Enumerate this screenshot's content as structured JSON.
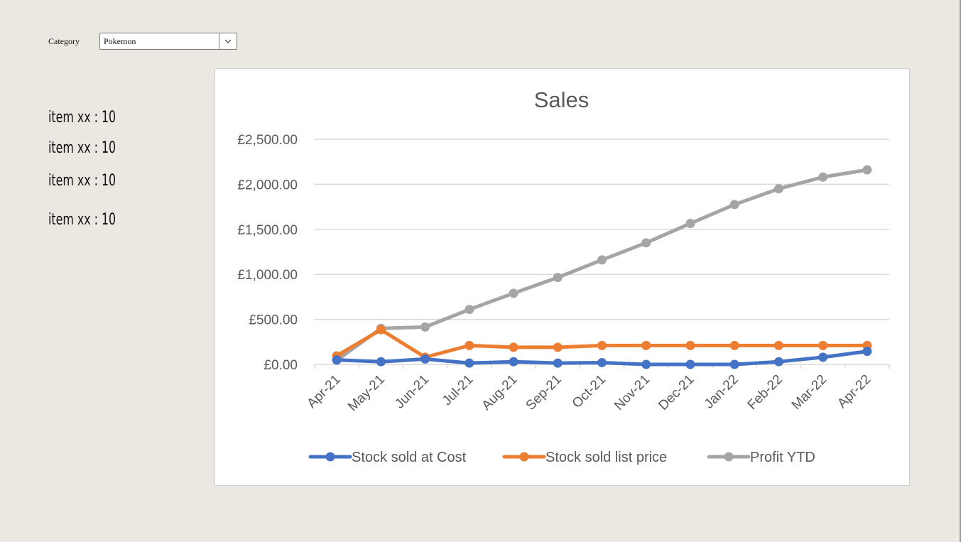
{
  "filter": {
    "label": "Category",
    "selected": "Pokemon"
  },
  "items": [
    {
      "text": "item xx : 10"
    },
    {
      "text": "item xx : 10"
    },
    {
      "text": "item xx : 10"
    },
    {
      "text": "item xx : 10"
    }
  ],
  "colors": {
    "stock_cost": "#4472c4",
    "stock_list": "#ed7d31",
    "profit": "#a5a5a5",
    "gridline": "#d9d9d9",
    "text": "#595959"
  },
  "chart_data": {
    "type": "line",
    "title": "Sales",
    "xlabel": "",
    "ylabel": "",
    "categories": [
      "Apr-21",
      "May-21",
      "Jun-21",
      "Jul-21",
      "Aug-21",
      "Sep-21",
      "Oct-21",
      "Nov-21",
      "Dec-21",
      "Jan-22",
      "Feb-22",
      "Mar-22",
      "Apr-22"
    ],
    "y_ticks": [
      "£0.00",
      "£500.00",
      "£1,000.00",
      "£1,500.00",
      "£2,000.00",
      "£2,500.00"
    ],
    "ylim": [
      0,
      2500
    ],
    "grid": true,
    "legend_position": "bottom",
    "series": [
      {
        "name": "Stock sold at Cost",
        "color_key": "stock_cost",
        "values": [
          50,
          30,
          60,
          15,
          30,
          15,
          20,
          0,
          0,
          0,
          30,
          80,
          145
        ]
      },
      {
        "name": "Stock sold list price",
        "color_key": "stock_list",
        "values": [
          95,
          385,
          80,
          210,
          190,
          190,
          210,
          210,
          210,
          210,
          210,
          210,
          210
        ]
      },
      {
        "name": "Profit YTD",
        "color_key": "profit",
        "values": [
          45,
          400,
          415,
          610,
          790,
          965,
          1160,
          1350,
          1565,
          1775,
          1950,
          2080,
          2160
        ]
      }
    ]
  }
}
